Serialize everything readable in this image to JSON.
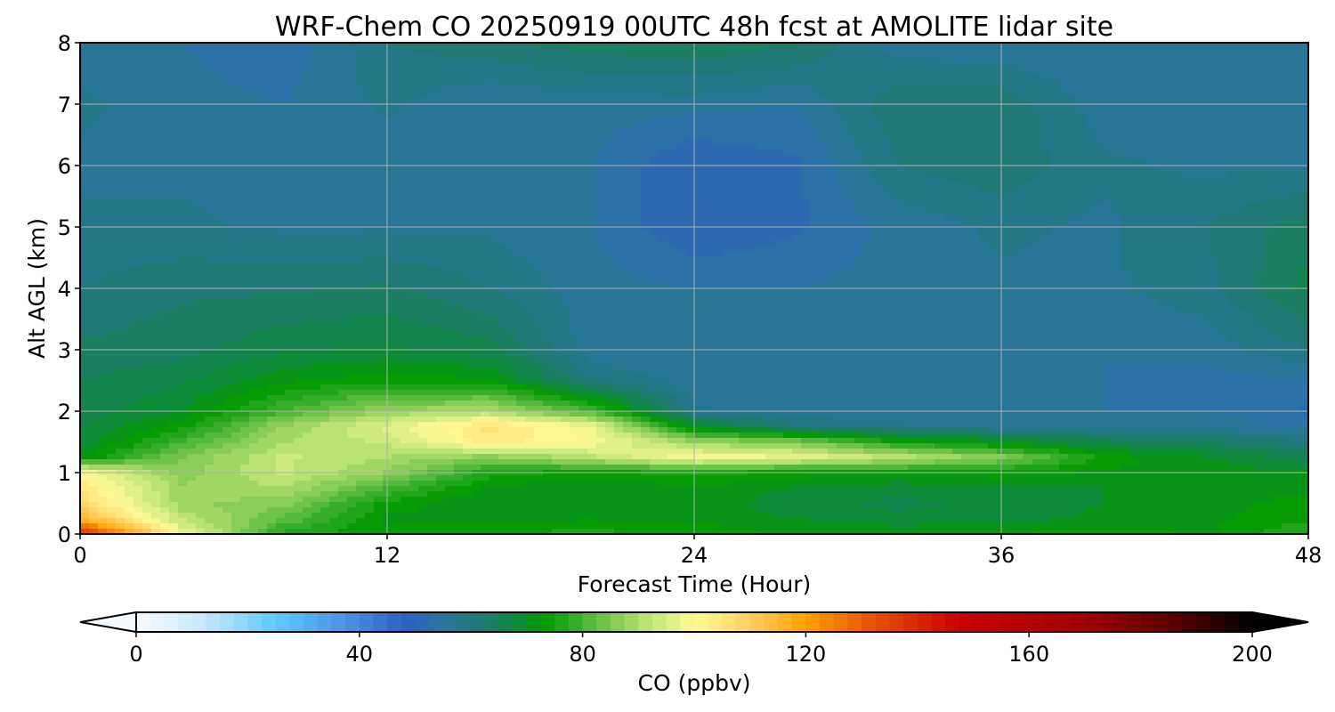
{
  "chart_data": {
    "type": "heatmap",
    "title": "WRF-Chem CO  20250919 00UTC 48h fcst at AMOLITE lidar site",
    "xlabel": "Forecast Time (Hour)",
    "ylabel": "Alt AGL (km)",
    "xlim": [
      0,
      48
    ],
    "ylim": [
      0,
      8
    ],
    "xticks": [
      "0",
      "12",
      "24",
      "36",
      "48"
    ],
    "yticks": [
      "0",
      "1",
      "2",
      "3",
      "4",
      "5",
      "6",
      "7",
      "8"
    ],
    "grid": true,
    "x": [
      0,
      4,
      8,
      12,
      16,
      20,
      24,
      28,
      32,
      36,
      40,
      44,
      48
    ],
    "y": [
      0,
      0.25,
      0.5,
      0.75,
      1,
      1.25,
      1.5,
      1.75,
      2,
      2.5,
      3,
      4,
      5,
      6,
      7,
      8
    ],
    "z": [
      [
        140,
        98,
        76,
        73,
        75,
        76,
        74,
        72,
        72,
        73,
        74,
        72,
        78
      ],
      [
        115,
        92,
        82,
        72,
        72,
        72,
        72,
        70,
        68,
        68,
        71,
        72,
        74
      ],
      [
        108,
        88,
        86,
        74,
        70,
        70,
        72,
        68,
        67,
        68,
        70,
        72,
        73
      ],
      [
        105,
        88,
        90,
        80,
        72,
        70,
        72,
        70,
        68,
        70,
        70,
        72,
        72
      ],
      [
        100,
        86,
        93,
        87,
        76,
        74,
        76,
        74,
        74,
        74,
        72,
        72,
        70
      ],
      [
        72,
        85,
        93,
        90,
        86,
        92,
        100,
        97,
        92,
        86,
        74,
        70,
        66
      ],
      [
        68,
        80,
        90,
        93,
        104,
        100,
        88,
        85,
        75,
        70,
        66,
        64,
        60
      ],
      [
        67,
        74,
        88,
        96,
        106,
        98,
        70,
        60,
        58,
        57,
        57,
        57,
        54
      ],
      [
        66,
        70,
        80,
        88,
        90,
        80,
        58,
        56,
        55,
        55,
        55,
        55,
        52
      ],
      [
        65,
        67,
        72,
        74,
        73,
        60,
        56,
        55,
        55,
        55,
        55,
        54,
        55
      ],
      [
        63,
        64,
        67,
        68,
        66,
        56,
        55,
        55,
        55,
        55,
        55,
        56,
        60
      ],
      [
        60,
        62,
        62,
        63,
        60,
        56,
        55,
        55,
        56,
        57,
        57,
        59,
        66
      ],
      [
        58,
        58,
        57,
        57,
        57,
        55,
        50,
        52,
        56,
        58,
        57,
        60,
        64
      ],
      [
        57,
        57,
        56,
        56,
        55,
        55,
        50,
        52,
        60,
        62,
        58,
        57,
        57
      ],
      [
        58,
        56,
        55,
        58,
        55,
        56,
        56,
        55,
        62,
        62,
        56,
        55,
        55
      ],
      [
        56,
        55,
        53,
        60,
        62,
        64,
        65,
        63,
        56,
        55,
        55,
        55,
        55
      ]
    ],
    "colorbar": {
      "label": "CO  (ppbv)",
      "min": 0,
      "max": 200,
      "step": 2.5,
      "extend": "both",
      "ticks": [
        "0",
        "40",
        "80",
        "120",
        "160",
        "200"
      ],
      "colors": [
        [
          0,
          "#f5faff"
        ],
        [
          12,
          "#c8e8fa"
        ],
        [
          25,
          "#60c8ff"
        ],
        [
          38,
          "#4a90e0"
        ],
        [
          48,
          "#3060c0"
        ],
        [
          55,
          "#2a74a0"
        ],
        [
          62,
          "#1f7a70"
        ],
        [
          68,
          "#108840"
        ],
        [
          73,
          "#009900"
        ],
        [
          78,
          "#30aa28"
        ],
        [
          85,
          "#7cc850"
        ],
        [
          92,
          "#c0e478"
        ],
        [
          100,
          "#fffa98"
        ],
        [
          110,
          "#ffd060"
        ],
        [
          120,
          "#ffa000"
        ],
        [
          132,
          "#e85000"
        ],
        [
          148,
          "#c80000"
        ],
        [
          170,
          "#a00000"
        ],
        [
          185,
          "#600000"
        ],
        [
          200,
          "#000000"
        ]
      ]
    }
  }
}
